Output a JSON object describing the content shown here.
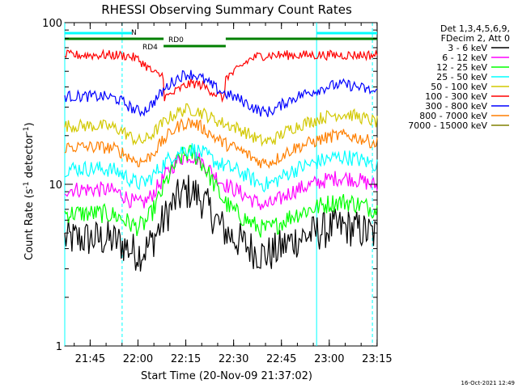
{
  "chart_data": {
    "type": "line",
    "title": "RHESSI Observing Summary Count Rates",
    "xlabel": "Start Time (20-Nov-09 21:37:02)",
    "ylabel_main": "Count Rate (s",
    "ylabel_sup": "-1",
    "ylabel_mid": " detector",
    "ylabel_end": ")",
    "footer": "16-Oct-2021 12:49",
    "yscale": "log",
    "ylim": [
      1,
      100
    ],
    "xlim_minutes": [
      0,
      98
    ],
    "x_ticks": [
      {
        "label": "21:45",
        "minute": 7.97
      },
      {
        "label": "22:00",
        "minute": 22.97
      },
      {
        "label": "22:15",
        "minute": 37.97
      },
      {
        "label": "22:30",
        "minute": 52.97
      },
      {
        "label": "22:45",
        "minute": 67.97
      },
      {
        "label": "23:00",
        "minute": 82.97
      },
      {
        "label": "23:15",
        "minute": 97.97
      }
    ],
    "y_ticks": [
      {
        "label": "1",
        "value": 1
      },
      {
        "label": "10",
        "value": 10
      },
      {
        "label": "100",
        "value": 100
      }
    ],
    "legend": {
      "header1": "Det 1,3,4,5,6,9,",
      "header2": "FDecim 2, Att 0",
      "entries": [
        {
          "label": "3 - 6 keV",
          "color": "#000000"
        },
        {
          "label": "6 - 12 keV",
          "color": "#ff00ff"
        },
        {
          "label": "12 - 25 keV",
          "color": "#00ff00"
        },
        {
          "label": "25 - 50 keV",
          "color": "#00ffff"
        },
        {
          "label": "50 - 100 keV",
          "color": "#d2c800"
        },
        {
          "label": "100 - 300 keV",
          "color": "#ff0000"
        },
        {
          "label": "300 - 800 keV",
          "color": "#0000ff"
        },
        {
          "label": "800 - 7000 keV",
          "color": "#ff7f00"
        },
        {
          "label": "7000 - 15000 keV",
          "color": "#808000"
        }
      ]
    },
    "flag_bars": {
      "n_label": "N",
      "n_color": "#00ffff",
      "n_segments": [
        [
          0,
          21
        ],
        [
          79,
          98
        ]
      ],
      "rd_color": "#008000",
      "rd_segments": [
        {
          "label": "",
          "range": [
            0,
            31
          ]
        },
        {
          "label": "RD0",
          "range": [
            31,
            50.5
          ]
        },
        {
          "label": "",
          "range": [
            50.5,
            98
          ]
        }
      ],
      "rd4_label": "RD4",
      "rd4_minute": 31
    },
    "night_boundaries_minutes": [
      {
        "minute": 0,
        "style": "solid"
      },
      {
        "minute": 18,
        "style": "dashed"
      },
      {
        "minute": 79,
        "style": "solid"
      },
      {
        "minute": 96.5,
        "style": "dashed"
      }
    ],
    "series": [
      {
        "name": "3 - 6 keV",
        "color": "#000000",
        "base": 4.6,
        "peak": 9.0,
        "noise": 0.12
      },
      {
        "name": "6 - 12 keV",
        "color": "#ff00ff",
        "base": 9.3,
        "peak": 15.0,
        "noise": 0.05
      },
      {
        "name": "12 - 25 keV",
        "color": "#00ff00",
        "base": 6.6,
        "peak": 15.5,
        "noise": 0.06
      },
      {
        "name": "25 - 50 keV",
        "color": "#00ffff",
        "base": 12.5,
        "peak": 16.5,
        "noise": 0.05
      },
      {
        "name": "50 - 100 keV",
        "color": "#d2c800",
        "base": 23.0,
        "peak": 29.0,
        "noise": 0.04
      },
      {
        "name": "100 - 300 keV",
        "color": "#ff0000",
        "base": 63.0,
        "peak": 42.0,
        "noise": 0.03
      },
      {
        "name": "300 - 800 keV",
        "color": "#0000ff",
        "base": 35.0,
        "peak": 48.0,
        "noise": 0.035
      },
      {
        "name": "800 - 7000 keV",
        "color": "#ff7f00",
        "base": 17.0,
        "peak": 24.0,
        "noise": 0.04
      },
      {
        "name": "7000 - 15000 keV",
        "color": "#808000",
        "base": 0,
        "peak": 0,
        "noise": 0
      }
    ]
  }
}
